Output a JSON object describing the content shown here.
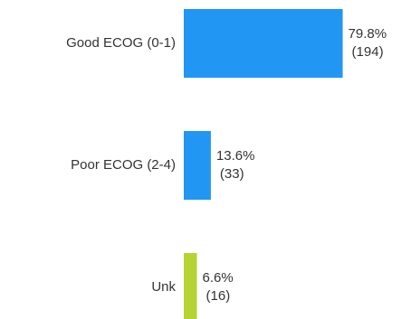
{
  "chart_data": {
    "type": "bar",
    "orientation": "horizontal",
    "categories": [
      "Good ECOG (0-1)",
      "Poor ECOG (2-4)",
      "Unk"
    ],
    "values": [
      79.8,
      13.6,
      6.6
    ],
    "value_labels": [
      "79.8%",
      "13.6%",
      "6.6%"
    ],
    "counts": [
      194,
      33,
      16
    ],
    "count_labels": [
      "(194)",
      "(33)",
      "(16)"
    ],
    "colors": [
      "#2196f3",
      "#2196f3",
      "#b5d334"
    ]
  }
}
